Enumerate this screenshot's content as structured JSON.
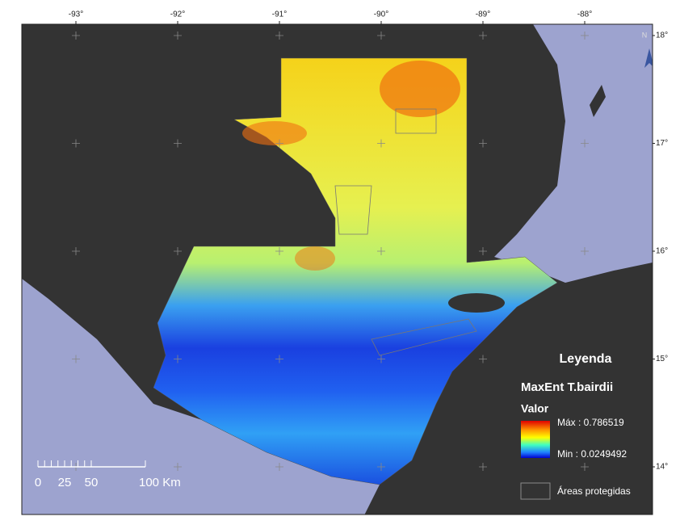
{
  "map": {
    "lon_labels": [
      "-93°",
      "-92°",
      "-91°",
      "-90°",
      "-89°",
      "-88°"
    ],
    "lat_labels": [
      "18°",
      "17°",
      "16°",
      "15°",
      "14°"
    ],
    "north": "N",
    "legend": {
      "title": "Leyenda",
      "layer": "MaxEnt T.bairdii",
      "field": "Valor",
      "max": "Máx : 0.786519",
      "min": "Min : 0.0249492",
      "protected": "Áreas protegidas"
    },
    "scale_bar": {
      "labels": [
        "0",
        "25",
        "50",
        "100 Km"
      ]
    }
  }
}
